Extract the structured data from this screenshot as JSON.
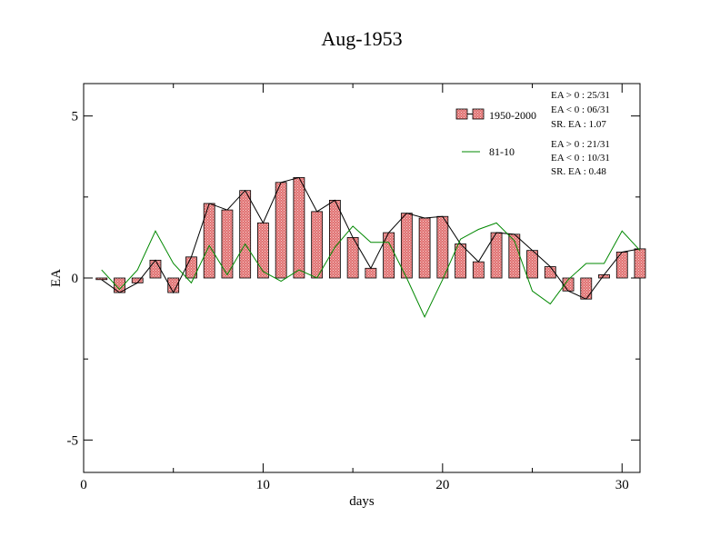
{
  "chart_data": {
    "type": "bar",
    "title": "Aug-1953",
    "xlabel": "days",
    "ylabel": "EA",
    "xlim": [
      0,
      31
    ],
    "ylim": [
      -6,
      6
    ],
    "x_ticks": [
      0,
      10,
      20,
      30
    ],
    "y_ticks": [
      -5,
      0,
      5
    ],
    "grid": false,
    "legend_position": "top-right",
    "x": [
      1,
      2,
      3,
      4,
      5,
      6,
      7,
      8,
      9,
      10,
      11,
      12,
      13,
      14,
      15,
      16,
      17,
      18,
      19,
      20,
      21,
      22,
      23,
      24,
      25,
      26,
      27,
      28,
      29,
      30,
      31
    ],
    "series": [
      {
        "name": "1950-2000",
        "kind": "bar_with_line",
        "values": [
          -0.05,
          -0.45,
          -0.15,
          0.55,
          -0.45,
          0.65,
          2.3,
          2.1,
          2.7,
          1.7,
          2.95,
          3.1,
          2.05,
          2.4,
          1.25,
          0.3,
          1.4,
          2.0,
          1.85,
          1.9,
          1.05,
          0.5,
          1.4,
          1.35,
          0.85,
          0.35,
          -0.4,
          -0.65,
          0.1,
          0.8,
          0.9
        ],
        "stats": [
          "EA > 0 : 25/31",
          "EA < 0 : 06/31",
          "SR. EA :  1.07"
        ]
      },
      {
        "name": "81-10",
        "kind": "line",
        "values": [
          0.25,
          -0.35,
          0.25,
          1.45,
          0.45,
          -0.15,
          1.0,
          0.1,
          1.05,
          0.2,
          -0.1,
          0.25,
          0.0,
          0.95,
          1.6,
          1.1,
          1.1,
          0.0,
          -1.2,
          -0.05,
          1.2,
          1.5,
          1.7,
          1.15,
          -0.4,
          -0.8,
          -0.05,
          0.45,
          0.45,
          1.45,
          0.85
        ],
        "stats": [
          "EA > 0 : 21/31",
          "EA < 0 : 10/31",
          "SR. EA :  0.48"
        ]
      }
    ],
    "colors": {
      "bar_fill": "#e88080",
      "bar_stroke": "#000000",
      "line_1950_2000": "#000000",
      "line_81_10": "#008800"
    }
  }
}
